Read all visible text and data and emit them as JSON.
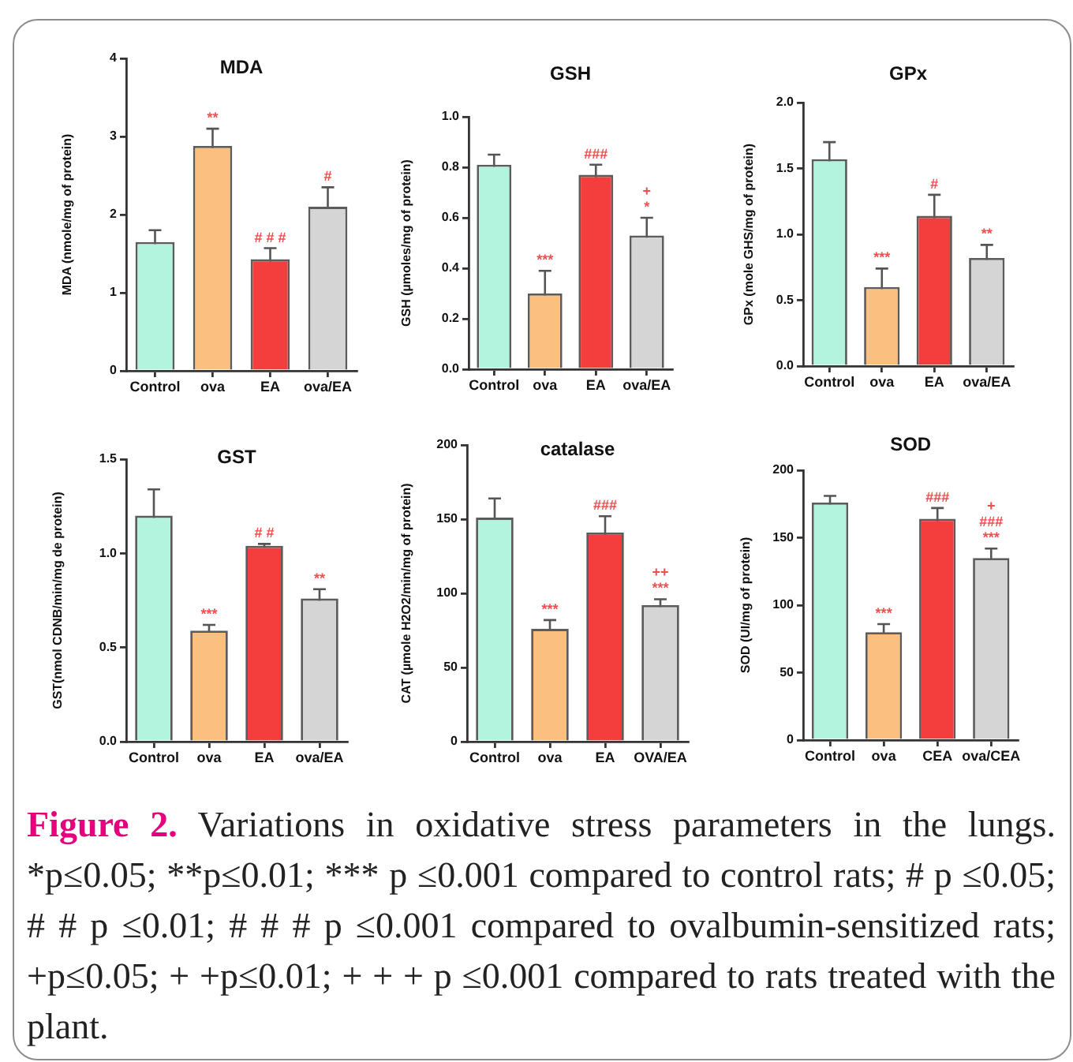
{
  "chart_data": [
    {
      "type": "bar",
      "title": "MDA",
      "ylabel": "MDA (nmole/mg of protein)",
      "categories": [
        "Control",
        "ova",
        "EA",
        "ova/EA"
      ],
      "values": [
        1.65,
        2.88,
        1.43,
        2.1
      ],
      "errors": [
        0.15,
        0.22,
        0.14,
        0.25
      ],
      "colors": [
        "#b3f4df",
        "#fbbf7f",
        "#f43d3d",
        "#d5d5d5"
      ],
      "ylim": [
        0,
        4
      ],
      "yticks": [
        0,
        1,
        2,
        3,
        4
      ],
      "annotations": [
        {
          "text": "**",
          "x": "ova",
          "y": 3.1
        },
        {
          "text": "# # #",
          "x": "EA",
          "y": 1.57
        },
        {
          "text": "#",
          "x": "ova/EA",
          "y": 2.35
        }
      ]
    },
    {
      "type": "bar",
      "title": "GSH",
      "ylabel": "GSH (µmoles/mg of protein)",
      "categories": [
        "Control",
        "ova",
        "EA",
        "ova/EA"
      ],
      "values": [
        0.81,
        0.3,
        0.77,
        0.53
      ],
      "errors": [
        0.04,
        0.09,
        0.04,
        0.07
      ],
      "colors": [
        "#b3f4df",
        "#fbbf7f",
        "#f43d3d",
        "#d5d5d5"
      ],
      "ylim": [
        0,
        1
      ],
      "yticks": [
        {
          "value": 0,
          "label": "0.0"
        },
        0.2,
        0.4,
        0.6,
        0.8,
        {
          "value": 1,
          "label": "1.0"
        }
      ],
      "annotations": [
        {
          "text": "***",
          "x": "ova",
          "y": 0.39
        },
        {
          "text": "###",
          "x": "EA",
          "y": 0.81
        },
        {
          "text": "*",
          "x": "ova/EA",
          "y": 0.6
        },
        {
          "text": "+",
          "x": "ova/EA",
          "y": 0.6
        }
      ]
    },
    {
      "type": "bar",
      "title": "GPx",
      "ylabel": "GPx (mole GHS/mg of protein)",
      "categories": [
        "Control",
        "ova",
        "EA",
        "ova/EA"
      ],
      "values": [
        1.57,
        0.6,
        1.14,
        0.82
      ],
      "errors": [
        0.13,
        0.14,
        0.16,
        0.1
      ],
      "colors": [
        "#b3f4df",
        "#fbbf7f",
        "#f43d3d",
        "#d5d5d5"
      ],
      "ylim": [
        0,
        2
      ],
      "yticks": [
        {
          "value": 0,
          "label": "0.0"
        },
        0.5,
        {
          "value": 1,
          "label": "1.0"
        },
        1.5,
        {
          "value": 2,
          "label": "2.0"
        }
      ],
      "annotations": [
        {
          "text": "***",
          "x": "ova",
          "y": 0.74
        },
        {
          "text": "#",
          "x": "EA",
          "y": 1.3
        },
        {
          "text": "**",
          "x": "ova/EA",
          "y": 0.92
        }
      ]
    },
    {
      "type": "bar",
      "title": "GST",
      "ylabel": "GST(nmol CDNB/min/mg de protein)",
      "categories": [
        "Control",
        "ova",
        "EA",
        "ova/EA"
      ],
      "values": [
        1.2,
        0.59,
        1.04,
        0.76
      ],
      "errors": [
        0.14,
        0.03,
        0.01,
        0.05
      ],
      "colors": [
        "#b3f4df",
        "#fbbf7f",
        "#f43d3d",
        "#d5d5d5"
      ],
      "ylim": [
        0,
        1.5
      ],
      "yticks": [
        {
          "value": 0,
          "label": "0.0"
        },
        0.5,
        {
          "value": 1,
          "label": "1.0"
        },
        1.5
      ],
      "annotations": [
        {
          "text": "***",
          "x": "ova",
          "y": 0.62
        },
        {
          "text": "# #",
          "x": "EA",
          "y": 1.05
        },
        {
          "text": "**",
          "x": "ova/EA",
          "y": 0.81
        }
      ]
    },
    {
      "type": "bar",
      "title": "catalase",
      "ylabel": "CAT (µmole H2O2/min/mg of protein)",
      "categories": [
        "Control",
        "ova",
        "EA",
        "OVA/EA"
      ],
      "values": [
        151,
        76,
        141,
        92
      ],
      "errors": [
        13,
        6,
        11,
        4
      ],
      "colors": [
        "#b3f4df",
        "#fbbf7f",
        "#f43d3d",
        "#d5d5d5"
      ],
      "ylim": [
        0,
        200
      ],
      "yticks": [
        0,
        50,
        100,
        150,
        200
      ],
      "annotations": [
        {
          "text": "***",
          "x": "ova",
          "y": 82
        },
        {
          "text": "###",
          "x": "EA",
          "y": 152
        },
        {
          "text": "***",
          "x": "OVA/EA",
          "y": 96
        },
        {
          "text": "++",
          "x": "OVA/EA",
          "y": 96
        }
      ]
    },
    {
      "type": "bar",
      "title": "SOD",
      "ylabel": "SOD (UI/mg of protein)",
      "categories": [
        "Control",
        "ova",
        "CEA",
        "ova/CEA"
      ],
      "values": [
        176,
        80,
        164,
        135
      ],
      "errors": [
        5,
        6,
        8,
        7
      ],
      "colors": [
        "#b3f4df",
        "#fbbf7f",
        "#f43d3d",
        "#d5d5d5"
      ],
      "ylim": [
        0,
        200
      ],
      "yticks": [
        0,
        50,
        100,
        150,
        200
      ],
      "annotations": [
        {
          "text": "***",
          "x": "ova",
          "y": 86
        },
        {
          "text": "###",
          "x": "CEA",
          "y": 172
        },
        {
          "text": "***",
          "x": "ova/CEA",
          "y": 142
        },
        {
          "text": "###",
          "x": "ova/CEA",
          "y": 142
        },
        {
          "text": "+",
          "x": "ova/CEA",
          "y": 142
        }
      ]
    },
    {
      "type": "other",
      "title": "Figure 2.",
      "subtitle": "Variations in oxidative stress parameters in the lungs.",
      "annotations": [
        "*p≤0.05; **p≤0.01; *** p ≤0.001 compared to control rats; # p ≤0.05; # # p ≤0.01; # # # p ≤0.001 compared to ovalbumin-sensitized rats; +p≤0.05; + +p≤0.01; + + + p ≤0.001 compared to rats treated with the plant."
      ]
    }
  ]
}
